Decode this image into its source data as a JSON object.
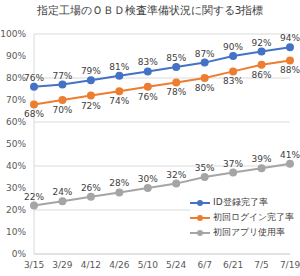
{
  "chart_data": {
    "type": "line",
    "title": "指定工場のＯＢＤ検査準備状況に関する3指標",
    "categories": [
      "3/15",
      "3/29",
      "4/12",
      "4/26",
      "5/10",
      "5/24",
      "6/7",
      "6/21",
      "7/5",
      "7/19"
    ],
    "series": [
      {
        "name": "ID登録完了率",
        "color": "#4472c4",
        "marker": "circle",
        "line_style": "solid",
        "values": [
          76,
          77,
          79,
          81,
          83,
          85,
          87,
          90,
          92,
          94
        ],
        "value_labels": [
          "76%",
          "77%",
          "79%",
          "81%",
          "83%",
          "85%",
          "87%",
          "90%",
          "92%",
          "94%"
        ]
      },
      {
        "name": "初回ログイン完了率",
        "color": "#ed7d31",
        "marker": "circle",
        "line_style": "solid",
        "values": [
          68,
          70,
          72,
          74,
          76,
          78,
          80,
          83,
          86,
          88
        ],
        "value_labels": [
          "68%",
          "70%",
          "72%",
          "74%",
          "76%",
          "78%",
          "80%",
          "83%",
          "86%",
          "88%"
        ]
      },
      {
        "name": "初回アプリ使用率",
        "color": "#a5a5a5",
        "marker": "circle",
        "line_style": "solid",
        "values": [
          22,
          24,
          26,
          28,
          30,
          32,
          35,
          37,
          39,
          41
        ],
        "value_labels": [
          "22%",
          "24%",
          "26%",
          "28%",
          "30%",
          "32%",
          "35%",
          "37%",
          "39%",
          "41%"
        ]
      }
    ],
    "ylim": [
      0,
      100
    ],
    "yticks": [
      {
        "value": 0,
        "label": "0%"
      },
      {
        "value": 10,
        "label": "10%"
      },
      {
        "value": 20,
        "label": "20%"
      },
      {
        "value": 30,
        "label": "30%"
      },
      {
        "value": 40,
        "label": "40%"
      },
      {
        "value": 50,
        "label": "50%"
      },
      {
        "value": 60,
        "label": "60%"
      },
      {
        "value": 70,
        "label": "70%"
      },
      {
        "value": 80,
        "label": "80%"
      },
      {
        "value": 90,
        "label": "90%"
      },
      {
        "value": 100,
        "label": "100%"
      }
    ],
    "grid": true,
    "legend": "lower right",
    "data_labels": true
  }
}
